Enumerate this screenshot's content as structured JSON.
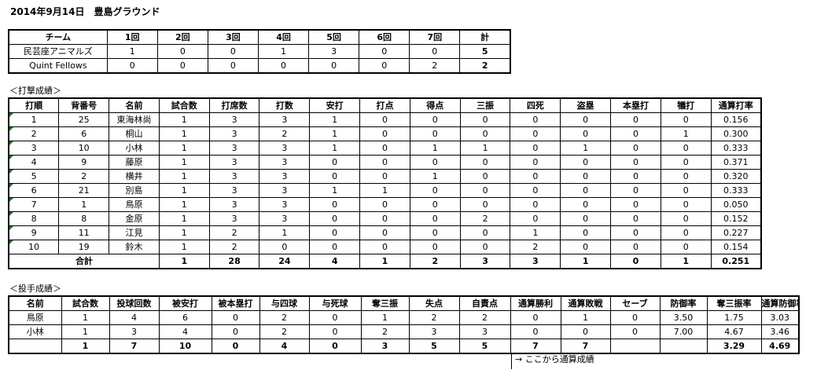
{
  "title": "2014年9月14日　豊島グラウンド",
  "linescore": {
    "headers": [
      "チーム",
      "1回",
      "2回",
      "3回",
      "4回",
      "5回",
      "6回",
      "7回",
      "計"
    ],
    "rows": [
      [
        "民芸座アニマルズ",
        "1",
        "0",
        "0",
        "1",
        "3",
        "0",
        "0",
        "5"
      ],
      [
        "Quint Fellows",
        "0",
        "0",
        "0",
        "0",
        "0",
        "0",
        "2",
        "2"
      ]
    ]
  },
  "batting": {
    "label": "＜打撃成績＞",
    "headers": [
      "打順",
      "背番号",
      "名前",
      "試合数",
      "打席数",
      "打数",
      "安打",
      "打点",
      "得点",
      "三振",
      "四死",
      "盗塁",
      "本塁打",
      "犠打",
      "通算打率"
    ],
    "rows": [
      [
        "1",
        "25",
        "東海林尚",
        "1",
        "3",
        "3",
        "1",
        "0",
        "0",
        "0",
        "0",
        "0",
        "0",
        "0",
        "0.156"
      ],
      [
        "2",
        "6",
        "桐山",
        "1",
        "3",
        "2",
        "1",
        "0",
        "0",
        "0",
        "0",
        "0",
        "0",
        "1",
        "0.300"
      ],
      [
        "3",
        "10",
        "小林",
        "1",
        "3",
        "3",
        "1",
        "0",
        "1",
        "1",
        "0",
        "1",
        "0",
        "0",
        "0.333"
      ],
      [
        "4",
        "9",
        "藤原",
        "1",
        "3",
        "3",
        "0",
        "0",
        "0",
        "0",
        "0",
        "0",
        "0",
        "0",
        "0.371"
      ],
      [
        "5",
        "2",
        "横井",
        "1",
        "3",
        "3",
        "0",
        "0",
        "1",
        "0",
        "0",
        "0",
        "0",
        "0",
        "0.320"
      ],
      [
        "6",
        "21",
        "別島",
        "1",
        "3",
        "3",
        "1",
        "1",
        "0",
        "0",
        "0",
        "0",
        "0",
        "0",
        "0.333"
      ],
      [
        "7",
        "1",
        "鳥原",
        "1",
        "3",
        "3",
        "0",
        "0",
        "0",
        "0",
        "0",
        "0",
        "0",
        "0",
        "0.050"
      ],
      [
        "8",
        "8",
        "金原",
        "1",
        "3",
        "3",
        "0",
        "0",
        "0",
        "2",
        "0",
        "0",
        "0",
        "0",
        "0.152"
      ],
      [
        "9",
        "11",
        "江見",
        "1",
        "2",
        "1",
        "0",
        "0",
        "0",
        "0",
        "1",
        "0",
        "0",
        "0",
        "0.227"
      ],
      [
        "10",
        "19",
        "鈴木",
        "1",
        "2",
        "0",
        "0",
        "0",
        "0",
        "0",
        "2",
        "0",
        "0",
        "0",
        "0.154"
      ]
    ],
    "total_label": "合計",
    "totals": [
      "1",
      "28",
      "24",
      "4",
      "1",
      "2",
      "3",
      "3",
      "1",
      "0",
      "1",
      "0.251"
    ]
  },
  "pitching": {
    "label": "＜投手成績＞",
    "headers": [
      "名前",
      "試合数",
      "投球回数",
      "被安打",
      "被本塁打",
      "与四球",
      "与死球",
      "奪三振",
      "失点",
      "自責点",
      "通算勝利",
      "通算敗戦",
      "セーブ",
      "防御率",
      "奪三振率",
      "通算防御率"
    ],
    "rows": [
      [
        "鳥原",
        "1",
        "4",
        "6",
        "0",
        "2",
        "0",
        "1",
        "2",
        "2",
        "0",
        "1",
        "0",
        "3.50",
        "1.75",
        "3.03"
      ],
      [
        "小林",
        "1",
        "3",
        "4",
        "0",
        "2",
        "0",
        "2",
        "3",
        "3",
        "0",
        "0",
        "0",
        "7.00",
        "4.67",
        "3.46"
      ]
    ],
    "totals": [
      "",
      "1",
      "7",
      "10",
      "0",
      "4",
      "0",
      "3",
      "5",
      "5",
      "7",
      "7",
      "",
      "",
      "3.29",
      "4.69"
    ]
  },
  "note": "→  ここから通算成績",
  "colors": {
    "cell_marker": "#1f7a1f"
  }
}
